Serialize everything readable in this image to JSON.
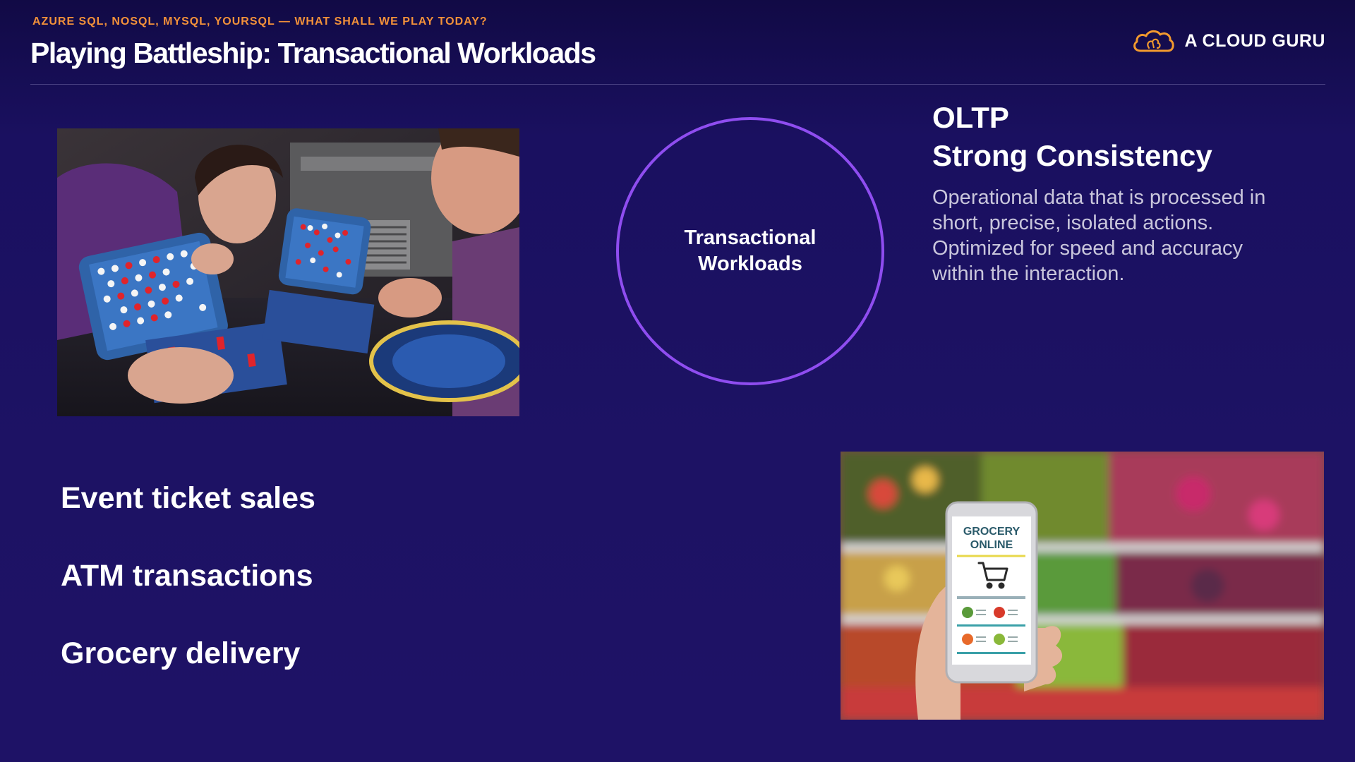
{
  "header": {
    "kicker": "AZURE SQL, NOSQL, MYSQL, YOURSQL — WHAT SHALL WE PLAY TODAY?",
    "title": "Playing Battleship: Transactional Workloads",
    "brand": "A CLOUD GURU"
  },
  "circle": {
    "label_line1": "Transactional",
    "label_line2": "Workloads"
  },
  "oltp": {
    "line1": "OLTP",
    "line2": "Strong Consistency",
    "description": "Operational data that is processed in short, precise, isolated actions. Optimized for speed and accuracy within the interaction."
  },
  "examples": [
    "Event ticket sales",
    "ATM transactions",
    "Grocery delivery"
  ],
  "grocery_phone": {
    "screen_line1": "GROCERY",
    "screen_line2": "ONLINE"
  },
  "colors": {
    "background": "#1c1160",
    "kicker": "#f3913a",
    "circle_border": "#8f4df0",
    "brand_orange": "#f29a2e"
  },
  "icons": {
    "brand_logo": "cloud-logo-icon",
    "cart": "shopping-cart-icon"
  }
}
